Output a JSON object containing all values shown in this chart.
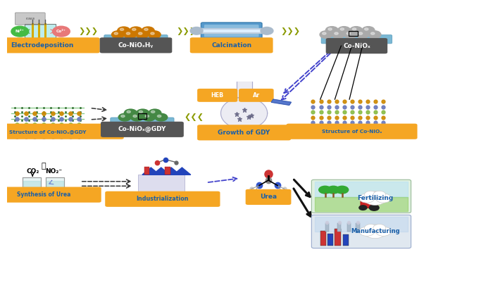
{
  "background_color": "#ffffff",
  "figsize": [
    7.0,
    4.12
  ],
  "dpi": 100,
  "labels": {
    "electrodeposition": "Electrodeposition",
    "coniohxy": "Co-NiOₓHᵧ",
    "calcination": "Calcination",
    "coniox": "Co-NiOₓ",
    "structure_gdy": "Structure of Co-NiOₓ@GDY",
    "coniox_gdy": "Co-NiOₓ@GDY",
    "growth_gdy": "Growth of GDY",
    "structure_coniox": "Structure of Co-NiOₓ",
    "synthesis_urea": "Synthesis of Urea",
    "industrialization": "Industrialization",
    "urea": "Urea",
    "fertilizing": "Fertilizing",
    "manufacturing": "Manufacturing",
    "heb": "HEB",
    "ar": "Ar"
  },
  "colors": {
    "orange_box": "#f5a623",
    "dark_box": "#555555",
    "blue_text": "#1a5fa8",
    "white_text": "#ffffff",
    "olive_arrow": "#8a9a00",
    "blue_arrow": "#4444cc",
    "black_arrow": "#111111",
    "platform_blue": "#7ab8d4",
    "sphere_orange": "#cc7700",
    "sphere_gray": "#aaaaaa",
    "sphere_green": "#448844",
    "ni_green": "#44bb44",
    "co_pink": "#e87878"
  }
}
